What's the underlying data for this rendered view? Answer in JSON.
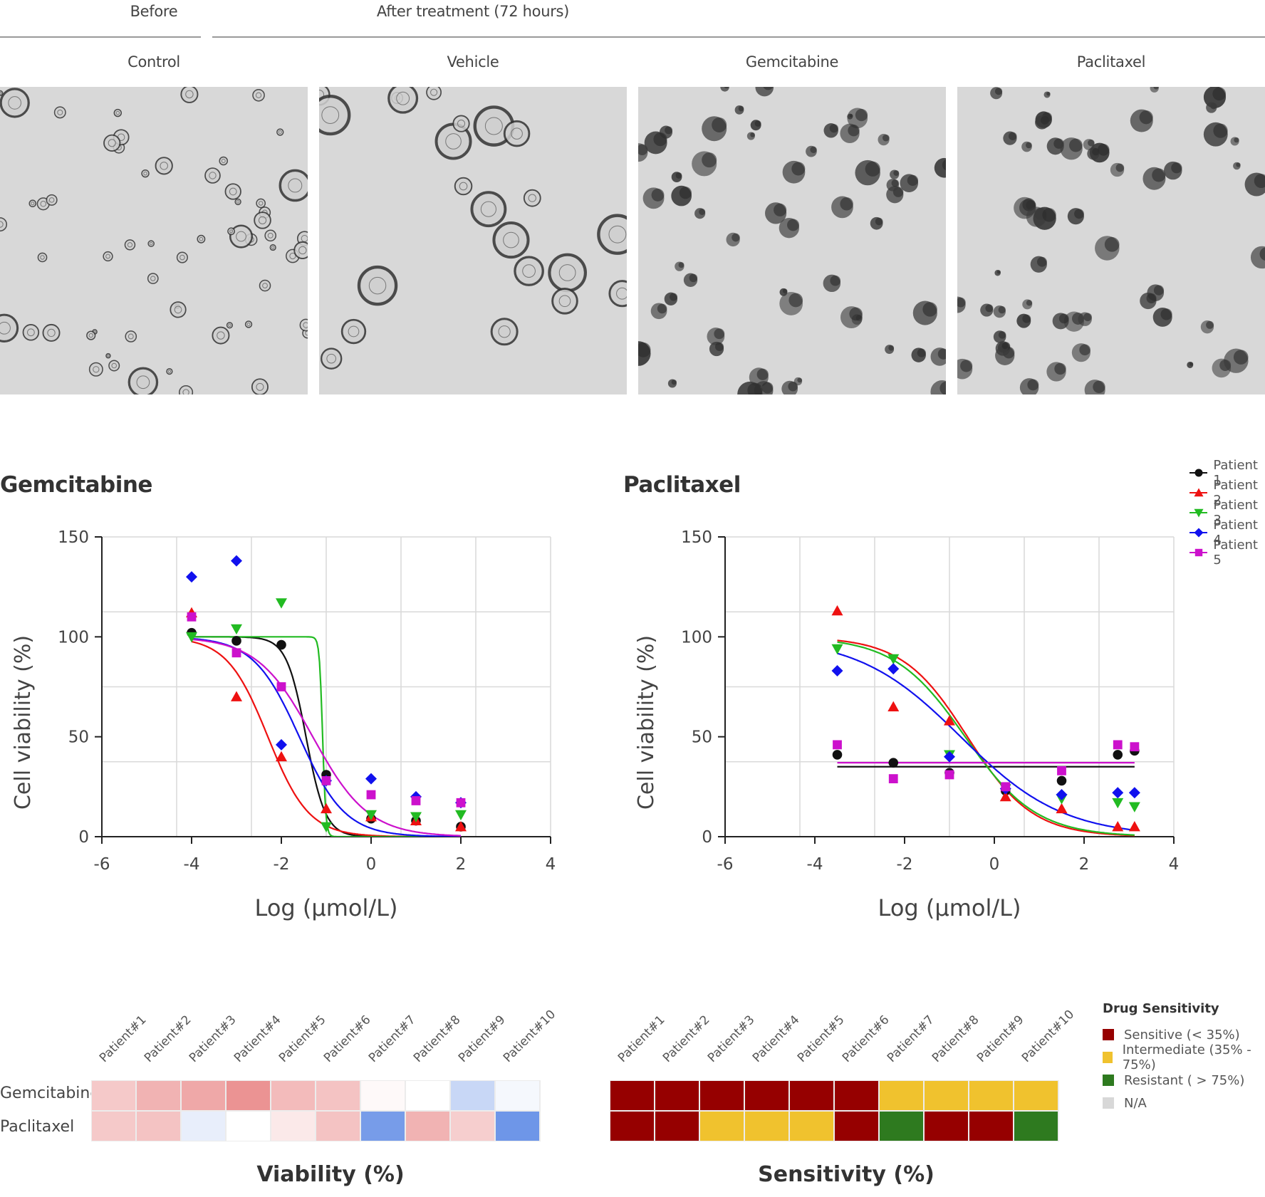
{
  "header": {
    "before": "Before",
    "after": "After treatment (72 hours)",
    "panels": [
      "Control",
      "Vehicle",
      "Gemcitabine",
      "Paclitaxel"
    ]
  },
  "colors": {
    "p1": "#111111",
    "p2": "#ee1111",
    "p3": "#22bb22",
    "p4": "#1111ee",
    "p5": "#cc11cc",
    "sensitive": "#960000",
    "intermediate": "#f0c22e",
    "resistant": "#2e7a1f",
    "na": "#d8d8d8"
  },
  "patient_legend": [
    "Patient 1",
    "Patient 2",
    "Patient 3",
    "Patient 4",
    "Patient 5"
  ],
  "chart_data": [
    {
      "type": "scatter",
      "title": "Gemcitabine",
      "xlabel": "Log (μmol/L)",
      "ylabel": "Cell viability (%)",
      "xlim": [
        -6,
        4
      ],
      "ylim": [
        0,
        150
      ],
      "xticks": [
        "-6",
        "-4",
        "-2",
        "0",
        "2",
        "4"
      ],
      "yticks": [
        "0",
        "50",
        "100",
        "150"
      ],
      "grid": true,
      "series": [
        {
          "name": "Patient 1",
          "marker": "circle",
          "points": [
            [
              -4,
              102
            ],
            [
              -3,
              98
            ],
            [
              -2,
              96
            ],
            [
              -1,
              31
            ],
            [
              0,
              9
            ],
            [
              1,
              8
            ],
            [
              2,
              5
            ]
          ],
          "fit": {
            "top": 100,
            "bottom": 0,
            "logec50": -1.45,
            "hill": 2.0
          }
        },
        {
          "name": "Patient 2",
          "marker": "triangle-up",
          "points": [
            [
              -4,
              112
            ],
            [
              -3,
              70
            ],
            [
              -2,
              40
            ],
            [
              -1,
              14
            ],
            [
              0,
              10
            ],
            [
              1,
              8
            ],
            [
              2,
              5
            ]
          ],
          "fit": {
            "top": 100,
            "bottom": 0,
            "logec50": -2.3,
            "hill": 0.95
          }
        },
        {
          "name": "Patient 3",
          "marker": "triangle-down",
          "points": [
            [
              -4,
              100
            ],
            [
              -3,
              104
            ],
            [
              -2,
              117
            ],
            [
              -1,
              5
            ],
            [
              0,
              11
            ],
            [
              1,
              10
            ],
            [
              2,
              11
            ]
          ],
          "fit": {
            "top": 100,
            "bottom": 0,
            "logec50": -1.08,
            "hill": 12
          }
        },
        {
          "name": "Patient 4",
          "marker": "diamond",
          "points": [
            [
              -4,
              130
            ],
            [
              -3,
              138
            ],
            [
              -2,
              46
            ],
            [
              -1,
              28
            ],
            [
              0,
              29
            ],
            [
              1,
              20
            ],
            [
              2,
              17
            ]
          ],
          "fit": {
            "top": 100,
            "bottom": 0,
            "logec50": -1.6,
            "hill": 0.85
          }
        },
        {
          "name": "Patient 5",
          "marker": "square",
          "points": [
            [
              -4,
              110
            ],
            [
              -3,
              92
            ],
            [
              -2,
              75
            ],
            [
              -1,
              28
            ],
            [
              0,
              21
            ],
            [
              1,
              18
            ],
            [
              2,
              17
            ]
          ],
          "fit": {
            "top": 100,
            "bottom": 0,
            "logec50": -1.3,
            "hill": 0.7
          }
        }
      ]
    },
    {
      "type": "scatter",
      "title": "Paclitaxel",
      "xlabel": "Log (μmol/L)",
      "ylabel": "Cell viability (%)",
      "xlim": [
        -6,
        4
      ],
      "ylim": [
        0,
        150
      ],
      "xticks": [
        "-6",
        "-4",
        "-2",
        "0",
        "2",
        "4"
      ],
      "yticks": [
        "0",
        "50",
        "100",
        "150"
      ],
      "grid": true,
      "series": [
        {
          "name": "Patient 1",
          "marker": "circle",
          "points": [
            [
              -3.5,
              41
            ],
            [
              -2.25,
              37
            ],
            [
              -1,
              32
            ],
            [
              0.25,
              23
            ],
            [
              1.5,
              28
            ],
            [
              2.75,
              41
            ],
            [
              3.125,
              43
            ]
          ],
          "flat": 35
        },
        {
          "name": "Patient 2",
          "marker": "triangle-up",
          "points": [
            [
              -3.5,
              113
            ],
            [
              -2.25,
              65
            ],
            [
              -1,
              58
            ],
            [
              0.25,
              20
            ],
            [
              1.5,
              14
            ],
            [
              2.75,
              5
            ],
            [
              3.125,
              5
            ]
          ],
          "fit": {
            "top": 100,
            "bottom": 0,
            "logec50": -0.6,
            "hill": 0.6
          }
        },
        {
          "name": "Patient 3",
          "marker": "triangle-down",
          "points": [
            [
              -3.5,
              94
            ],
            [
              -2.25,
              89
            ],
            [
              -1,
              41
            ],
            [
              0.25,
              24
            ],
            [
              1.5,
              19
            ],
            [
              2.75,
              17
            ],
            [
              3.125,
              15
            ]
          ],
          "fit": {
            "top": 100,
            "bottom": 0,
            "logec50": -0.65,
            "hill": 0.55
          }
        },
        {
          "name": "Patient 4",
          "marker": "diamond",
          "points": [
            [
              -3.5,
              83
            ],
            [
              -2.25,
              84
            ],
            [
              -1,
              40
            ],
            [
              0.25,
              24
            ],
            [
              1.5,
              21
            ],
            [
              2.75,
              22
            ],
            [
              3.125,
              22
            ]
          ],
          "fit": {
            "top": 100,
            "bottom": 0,
            "logec50": -0.75,
            "hill": 0.38
          }
        },
        {
          "name": "Patient 5",
          "marker": "square",
          "points": [
            [
              -3.5,
              46
            ],
            [
              -2.25,
              29
            ],
            [
              -1,
              31
            ],
            [
              0.25,
              25
            ],
            [
              1.5,
              33
            ],
            [
              2.75,
              46
            ],
            [
              3.125,
              45
            ]
          ],
          "flat": 37
        }
      ]
    },
    {
      "type": "heatmap",
      "title": "Viability (%)",
      "columns": [
        "Patient#1",
        "Patient#2",
        "Patient#3",
        "Patient#4",
        "Patient#5",
        "Patient#6",
        "Patient#7",
        "Patient#8",
        "Patient#9",
        "Patient#10"
      ],
      "rows": [
        "Gemcitabine",
        "Paclitaxel"
      ],
      "values": [
        [
          30,
          22,
          18,
          10,
          25,
          28,
          48,
          50,
          62,
          52
        ],
        [
          30,
          28,
          55,
          50,
          42,
          28,
          80,
          22,
          32,
          82
        ]
      ]
    },
    {
      "type": "heatmap",
      "title": "Sensitivity (%)",
      "columns": [
        "Patient#1",
        "Patient#2",
        "Patient#3",
        "Patient#4",
        "Patient#5",
        "Patient#6",
        "Patient#7",
        "Patient#8",
        "Patient#9",
        "Patient#10"
      ],
      "rows": [
        "Gemcitabine",
        "Paclitaxel"
      ],
      "values": [
        [
          "sensitive",
          "sensitive",
          "sensitive",
          "sensitive",
          "sensitive",
          "sensitive",
          "intermediate",
          "intermediate",
          "intermediate",
          "intermediate"
        ],
        [
          "sensitive",
          "sensitive",
          "intermediate",
          "intermediate",
          "intermediate",
          "sensitive",
          "resistant",
          "sensitive",
          "sensitive",
          "resistant"
        ]
      ]
    }
  ],
  "sensitivity_legend": {
    "title": "Drug Sensitivity",
    "items": [
      {
        "key": "sensitive",
        "label": "Sensitive (< 35%)"
      },
      {
        "key": "intermediate",
        "label": "Intermediate (35% - 75%)"
      },
      {
        "key": "resistant",
        "label": "Resistant ( > 75%)"
      },
      {
        "key": "na",
        "label": "N/A"
      }
    ]
  }
}
